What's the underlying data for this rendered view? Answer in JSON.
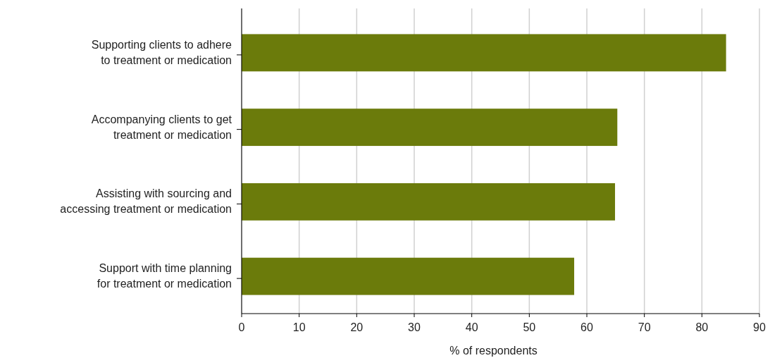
{
  "chart_data": {
    "type": "bar",
    "orientation": "horizontal",
    "categories": [
      "Supporting clients to adhere\nto treatment or medication",
      "Accompanying clients to get\ntreatment or medication",
      "Assisting with sourcing and\naccessing treatment or medication",
      "Support with time planning\nfor treatment or medication"
    ],
    "values": [
      84.2,
      65.3,
      64.9,
      57.8
    ],
    "color": "#6b7b0b",
    "xlim": [
      0,
      90
    ],
    "xticks": [
      0,
      10,
      20,
      30,
      40,
      50,
      60,
      70,
      80,
      90
    ],
    "xlabel": "% of respondents",
    "grid": "x"
  }
}
